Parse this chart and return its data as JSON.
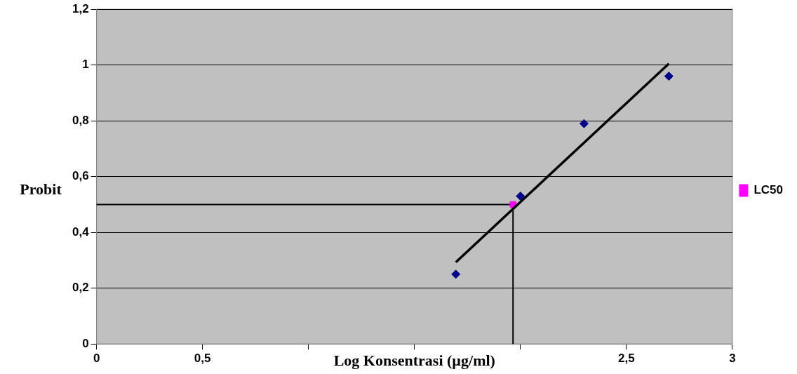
{
  "chart_data": {
    "type": "scatter",
    "xlabel": "Log Konsentrasi (µg/ml)",
    "ylabel": "Probit",
    "xlim": [
      0,
      3
    ],
    "xticks": [
      0,
      {
        "value": 0.5,
        "label": "0,5"
      },
      {
        "value": 1,
        "label": null
      },
      {
        "value": 1.5,
        "label": null
      },
      {
        "value": 2,
        "label": null
      },
      {
        "value": 2.5,
        "label": "2,5"
      },
      3
    ],
    "ylim": [
      0,
      1.2
    ],
    "yticks": [
      {
        "value": 0,
        "label": "0"
      },
      {
        "value": 0.2,
        "label": "0,2"
      },
      {
        "value": 0.4,
        "label": "0,4"
      },
      {
        "value": 0.6,
        "label": "0,6"
      },
      {
        "value": 0.8,
        "label": "0,8"
      },
      {
        "value": 1,
        "label": "1"
      },
      {
        "value": 1.2,
        "label": "1,2"
      }
    ],
    "grid": "y",
    "legend": "right",
    "series": [
      {
        "color": "#00008b",
        "marker": "diamond",
        "x": [
          1.695,
          2.0,
          2.3,
          2.7
        ],
        "values": [
          0.25,
          0.53,
          0.79,
          0.96
        ]
      },
      {
        "type": "line",
        "color": "#000000",
        "marker": "none",
        "line_style": "solid",
        "x": [
          1.695,
          2.7
        ],
        "values": [
          0.293,
          1.005
        ]
      },
      {
        "name": "LC50",
        "color": "#ff00ff",
        "marker": "square",
        "x": [
          1.965
        ],
        "values": [
          0.5
        ]
      }
    ],
    "ref_lines": [
      {
        "axis": "y",
        "value": 0.5,
        "color": "#000000"
      },
      {
        "axis": "x",
        "value": 1.965,
        "color": "#000000"
      }
    ]
  }
}
